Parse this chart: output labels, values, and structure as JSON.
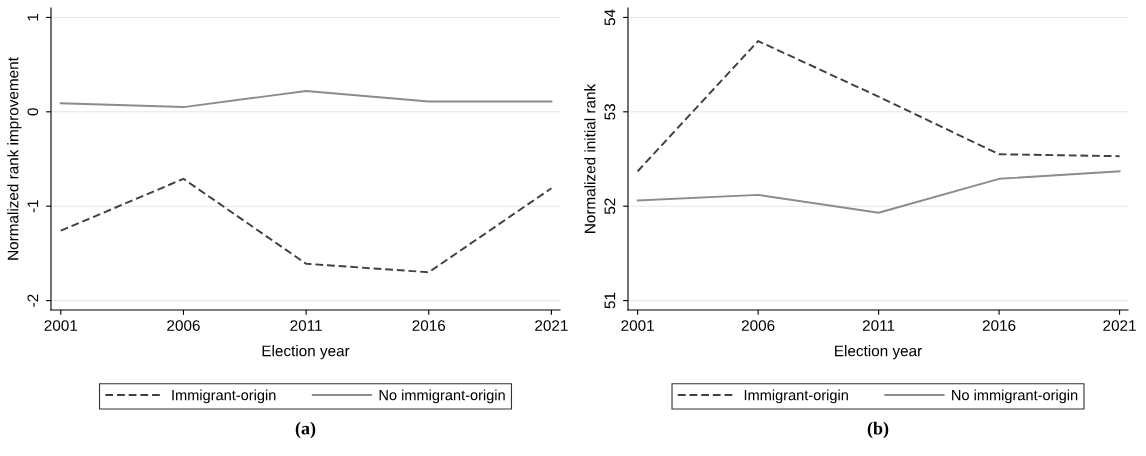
{
  "chart_data": [
    {
      "type": "line",
      "xlabel": "Election year",
      "ylabel": "Normalized rank improvement",
      "x": [
        2001,
        2006,
        2011,
        2016,
        2021
      ],
      "xlim": [
        2000.6,
        2021.35
      ],
      "xticks": [
        2001,
        2006,
        2011,
        2016,
        2021
      ],
      "ylim": [
        -2.1,
        1.1
      ],
      "yticks": [
        -2,
        -1,
        0,
        1
      ],
      "grid": "y",
      "legend": "bottom",
      "annotations": [
        "(a)"
      ],
      "series": [
        {
          "name": "Immigrant-origin",
          "color": "#404040",
          "line_style": "dashed",
          "values": [
            -1.26,
            -0.71,
            -1.61,
            -1.7,
            -0.81
          ]
        },
        {
          "name": "No immigrant-origin",
          "color": "#8c8c8c",
          "line_style": "solid",
          "values": [
            0.09,
            0.05,
            0.22,
            0.11,
            0.11
          ]
        }
      ]
    },
    {
      "type": "line",
      "xlabel": "Election year",
      "ylabel": "Normalized initial rank",
      "x": [
        2001,
        2006,
        2011,
        2016,
        2021
      ],
      "xlim": [
        2000.6,
        2021.35
      ],
      "xticks": [
        2001,
        2006,
        2011,
        2016,
        2021
      ],
      "ylim": [
        50.9,
        54.1
      ],
      "yticks": [
        51,
        52,
        53,
        54
      ],
      "grid": "y",
      "legend": "bottom",
      "annotations": [
        "(b)"
      ],
      "series": [
        {
          "name": "Immigrant-origin",
          "color": "#404040",
          "line_style": "dashed",
          "values": [
            52.37,
            53.75,
            53.16,
            52.55,
            52.53
          ]
        },
        {
          "name": "No immigrant-origin",
          "color": "#8c8c8c",
          "line_style": "solid",
          "values": [
            52.06,
            52.12,
            51.93,
            52.29,
            52.37
          ]
        }
      ]
    }
  ]
}
